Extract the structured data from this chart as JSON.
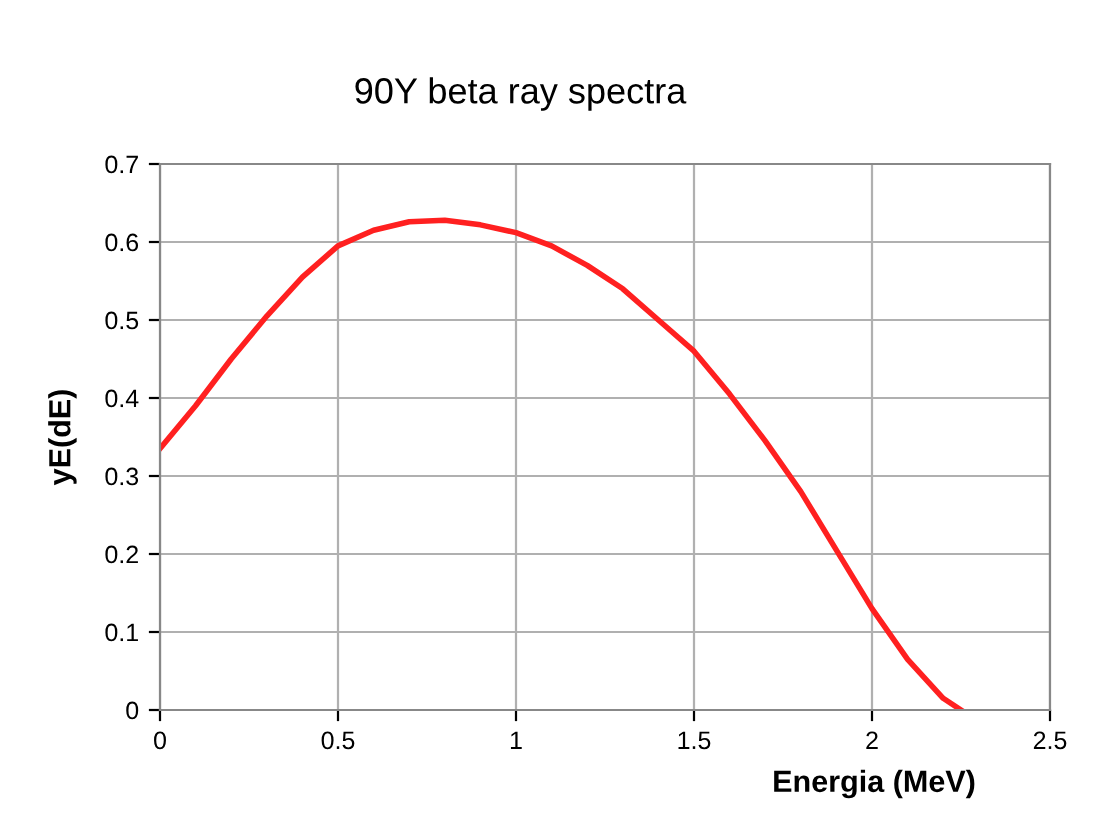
{
  "chart_data": {
    "type": "line",
    "title": "90Y beta ray spectra",
    "xlabel": "Energia (MeV)",
    "ylabel": "yE(dE)",
    "x": [
      0,
      0.1,
      0.2,
      0.3,
      0.4,
      0.5,
      0.6,
      0.7,
      0.8,
      0.9,
      1.0,
      1.1,
      1.2,
      1.3,
      1.4,
      1.5,
      1.6,
      1.7,
      1.8,
      1.9,
      2.0,
      2.1,
      2.2,
      2.25
    ],
    "series": [
      {
        "color": "#ff2020",
        "values": [
          0.335,
          0.39,
          0.45,
          0.505,
          0.555,
          0.595,
          0.615,
          0.626,
          0.628,
          0.622,
          0.612,
          0.595,
          0.57,
          0.54,
          0.5,
          0.46,
          0.405,
          0.345,
          0.28,
          0.205,
          0.13,
          0.065,
          0.015,
          0
        ]
      }
    ],
    "xlim": [
      0,
      2.5
    ],
    "xticks": [
      0,
      0.5,
      1,
      1.5,
      2,
      2.5
    ],
    "ylim": [
      0,
      0.7
    ],
    "yticks": [
      0,
      0.1,
      0.2,
      0.3,
      0.4,
      0.5,
      0.6,
      0.7
    ],
    "grid": true,
    "legend": false,
    "marker": "none",
    "line_style": "solid"
  }
}
